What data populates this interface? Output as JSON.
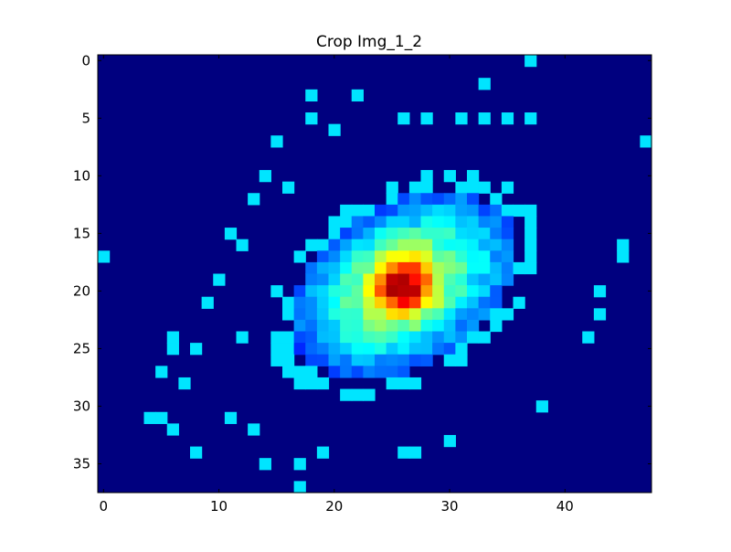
{
  "chart_data": {
    "type": "heatmap",
    "title": "Crop Img_1_2",
    "xlabel": "",
    "ylabel": "",
    "colormap": "jet",
    "cols": 48,
    "rows": 38,
    "xlim": [
      -0.5,
      47.5
    ],
    "ylim": [
      37.5,
      -0.5
    ],
    "y_axis_inverted": true,
    "xticks": [
      0,
      10,
      20,
      30,
      40
    ],
    "yticks": [
      0,
      5,
      10,
      15,
      20,
      25,
      30,
      35
    ],
    "grid": false,
    "background_color": "#00007f",
    "blob": {
      "center_x": 26,
      "center_y": 19.5,
      "peak_value": 1.0,
      "major_axis_sigma": 8.5,
      "minor_axis_sigma": 5.5,
      "orientation": "tilted, upper-right to lower-left"
    },
    "isolated_pixels": [
      [
        37,
        0
      ],
      [
        33,
        2
      ],
      [
        18,
        3
      ],
      [
        22,
        3
      ],
      [
        18,
        5
      ],
      [
        26,
        5
      ],
      [
        28,
        5
      ],
      [
        31,
        5
      ],
      [
        33,
        5
      ],
      [
        35,
        5
      ],
      [
        37,
        5
      ],
      [
        15,
        7
      ],
      [
        47,
        7
      ],
      [
        20,
        6
      ],
      [
        14,
        10
      ],
      [
        16,
        11
      ],
      [
        13,
        12
      ],
      [
        11,
        15
      ],
      [
        12,
        16
      ],
      [
        0,
        17
      ],
      [
        45,
        16
      ],
      [
        45,
        17
      ],
      [
        10,
        19
      ],
      [
        9,
        21
      ],
      [
        43,
        22
      ],
      [
        6,
        24
      ],
      [
        6,
        25
      ],
      [
        8,
        25
      ],
      [
        5,
        27
      ],
      [
        7,
        28
      ],
      [
        4,
        31
      ],
      [
        5,
        31
      ],
      [
        6,
        32
      ],
      [
        8,
        34
      ],
      [
        14,
        35
      ],
      [
        17,
        35
      ],
      [
        17,
        37
      ],
      [
        19,
        34
      ],
      [
        26,
        34
      ],
      [
        27,
        34
      ],
      [
        30,
        33
      ],
      [
        38,
        30
      ],
      [
        42,
        24
      ],
      [
        43,
        20
      ],
      [
        12,
        24
      ],
      [
        11,
        31
      ],
      [
        13,
        32
      ]
    ]
  }
}
